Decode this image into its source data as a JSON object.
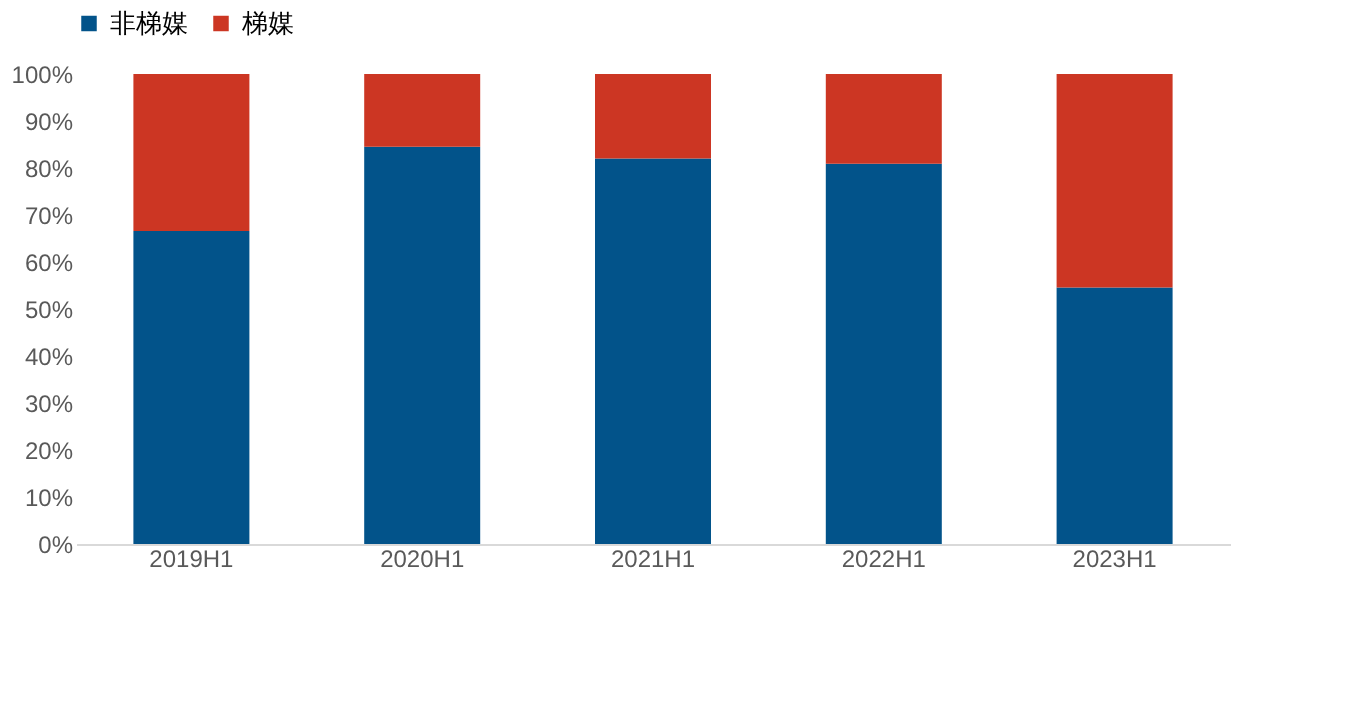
{
  "chart_data": {
    "type": "bar",
    "stacked": true,
    "categories": [
      "2019H1",
      "2020H1",
      "2021H1",
      "2022H1",
      "2023H1"
    ],
    "series": [
      {
        "name": "非梯媒",
        "color": "#02538a",
        "values": [
          66.6,
          84.5,
          82.0,
          80.9,
          54.6
        ]
      },
      {
        "name": "梯媒",
        "color": "#cc3623",
        "values": [
          33.4,
          15.5,
          18.0,
          19.1,
          45.4
        ]
      }
    ],
    "ylim": [
      0,
      100
    ],
    "yticks": [
      {
        "value": 0,
        "label": "0%"
      },
      {
        "value": 10,
        "label": "10%"
      },
      {
        "value": 20,
        "label": "20%"
      },
      {
        "value": 30,
        "label": "30%"
      },
      {
        "value": 40,
        "label": "40%"
      },
      {
        "value": 50,
        "label": "50%"
      },
      {
        "value": 60,
        "label": "60%"
      },
      {
        "value": 70,
        "label": "70%"
      },
      {
        "value": 80,
        "label": "80%"
      },
      {
        "value": 90,
        "label": "90%"
      },
      {
        "value": 100,
        "label": "100%"
      }
    ],
    "grid": false,
    "legend": "top"
  }
}
